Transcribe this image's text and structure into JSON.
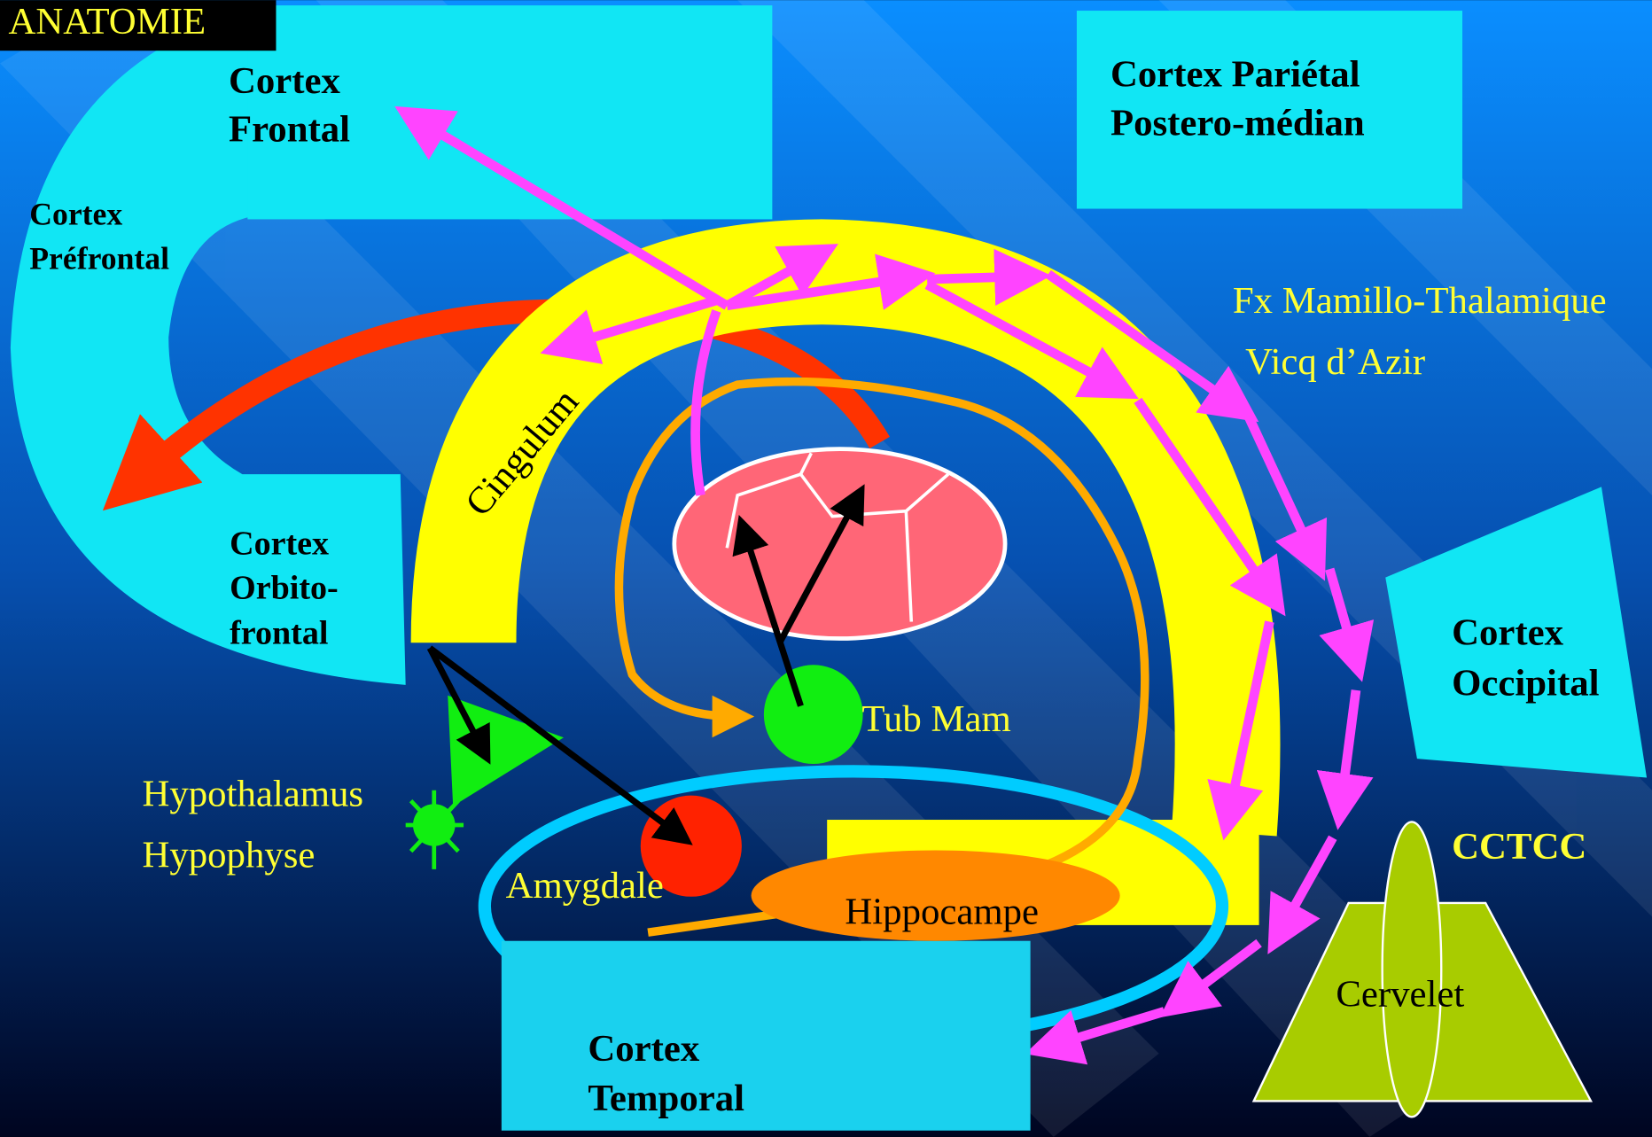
{
  "header": {
    "title": "ANATOMIE"
  },
  "nodes": [
    {
      "lines": [
        "Cortex",
        "Frontal"
      ]
    },
    {
      "lines": [
        "Cortex Pariétal",
        "Postero-médian"
      ]
    },
    {
      "lines": [
        "Cortex",
        "Préfrontal"
      ]
    },
    {
      "lines": [
        "Cortex",
        "Orbito-",
        "frontal"
      ]
    },
    {
      "lines": [
        "Cortex",
        "Occipital"
      ]
    },
    {
      "lines": [
        "Cortex",
        "Temporal"
      ]
    },
    {
      "lines": [
        "Cingulum"
      ]
    },
    {
      "lines": [
        "Tub Mam"
      ]
    },
    {
      "lines": [
        "Hypothalamus",
        "Hypophyse"
      ]
    },
    {
      "lines": [
        "Amygdale"
      ]
    },
    {
      "lines": [
        "Hippocampe"
      ]
    },
    {
      "lines": [
        "Cervelet"
      ]
    },
    {
      "lines": [
        "CCTCC"
      ]
    },
    {
      "lines": [
        "Fx Mamillo-Thalamique",
        "Vicq d’Azir"
      ]
    }
  ]
}
